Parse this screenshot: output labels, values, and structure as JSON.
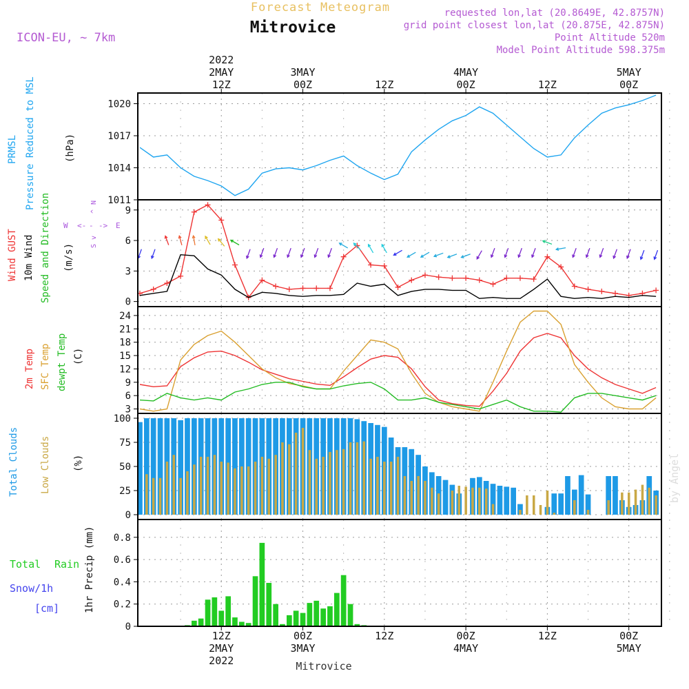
{
  "header": {
    "super_title": "Forecast Meteogram",
    "location": "Mitrovice",
    "model": "ICON-EU, ~ 7km",
    "requested": "requested lon,lat (20.8649E, 42.8757N)",
    "gridpoint": "grid point closest lon,lat (20.875E, 42.875N)",
    "point_alt": "Point Altitude 520m",
    "model_alt": "Model Point Altitude 598.375m",
    "footer": "Mitrovice",
    "credit": "by Angel"
  },
  "colors": {
    "pressure": "#1ea5f0",
    "wind": "#000000",
    "gust": "#ee3333",
    "dir_label": "#22bb22",
    "compass": "#aa55dd",
    "temp2m": "#ee3333",
    "sfc": "#d9a030",
    "dewpt": "#22bb22",
    "total_clouds": "#1e9ae6",
    "low_clouds": "#c9a845",
    "rain": "#22cc22",
    "snow": "#4444ee",
    "header_purple": "#b45ad2",
    "header_orange": "#e8c060"
  },
  "time_axis": {
    "top": [
      {
        "t": 12,
        "lines": [
          "2022",
          "2MAY",
          "12Z"
        ]
      },
      {
        "t": 24,
        "lines": [
          "3MAY",
          "00Z"
        ]
      },
      {
        "t": 36,
        "lines": [
          "12Z"
        ]
      },
      {
        "t": 48,
        "lines": [
          "4MAY",
          "00Z"
        ]
      },
      {
        "t": 60,
        "lines": [
          "12Z"
        ]
      },
      {
        "t": 72,
        "lines": [
          "5MAY",
          "00Z"
        ]
      }
    ],
    "bottom": [
      {
        "t": 12,
        "lines": [
          "12Z",
          "2MAY",
          "2022"
        ]
      },
      {
        "t": 24,
        "lines": [
          "00Z",
          "3MAY"
        ]
      },
      {
        "t": 36,
        "lines": [
          "12Z"
        ]
      },
      {
        "t": 48,
        "lines": [
          "00Z",
          "4MAY"
        ]
      },
      {
        "t": 60,
        "lines": [
          "12Z"
        ]
      },
      {
        "t": 72,
        "lines": [
          "00Z",
          "5MAY"
        ]
      }
    ]
  },
  "panels": {
    "pressure": {
      "labels": [
        "PRMSL",
        "Pressure Reduced to MSL"
      ],
      "unit": "(hPa)"
    },
    "wind": {
      "labels": [
        "Wind GUST",
        "10m Wind",
        "Speed and Direction"
      ],
      "unit": "(m/s)",
      "compass": [
        "W",
        "<-",
        "-",
        "->",
        "E"
      ],
      "compass_v": [
        "N",
        "^",
        "-",
        "v",
        "S"
      ]
    },
    "temp": {
      "labels": [
        "2m Temp",
        "SFC Temp",
        "dewpt Temp"
      ],
      "unit": "(C)"
    },
    "clouds": {
      "labels": [
        "Total Clouds",
        "Low Clouds"
      ],
      "unit": "(%)"
    },
    "precip": {
      "labels": [
        "Total",
        "Rain",
        "Snow/1h",
        "[cm]"
      ],
      "unit": "1hr Precip (mm)"
    }
  },
  "chart_data": [
    {
      "type": "line",
      "panel": "pressure",
      "title": "PRMSL Pressure Reduced to MSL",
      "ylabel": "(hPa)",
      "ylim": [
        1011,
        1021
      ],
      "yticks": [
        1011,
        1014,
        1017,
        1020
      ],
      "x_unit": "hours from 2 MAY 00Z",
      "x": [
        0,
        2,
        4,
        6,
        8,
        10,
        12,
        14,
        16,
        18,
        20,
        22,
        24,
        26,
        28,
        30,
        32,
        34,
        36,
        38,
        40,
        42,
        44,
        46,
        48,
        50,
        52,
        54,
        56,
        58,
        60,
        62,
        64,
        66,
        68,
        70,
        72,
        74,
        76
      ],
      "series": [
        {
          "name": "PRMSL",
          "values": [
            1015.9,
            1015.0,
            1015.2,
            1014.0,
            1013.2,
            1012.8,
            1012.3,
            1011.4,
            1012.0,
            1013.5,
            1013.9,
            1014.0,
            1013.8,
            1014.2,
            1014.7,
            1015.1,
            1014.2,
            1013.5,
            1012.9,
            1013.4,
            1015.5,
            1016.6,
            1017.6,
            1018.4,
            1018.9,
            1019.7,
            1019.1,
            1018.0,
            1016.9,
            1015.8,
            1015.0,
            1015.2,
            1016.8,
            1018.0,
            1019.1,
            1019.6,
            1019.9,
            1020.3,
            1020.8
          ]
        }
      ]
    },
    {
      "type": "line",
      "panel": "wind",
      "title": "Wind GUST / 10m Wind Speed and Direction",
      "ylabel": "(m/s)",
      "ylim": [
        -0.5,
        10
      ],
      "yticks": [
        0,
        3,
        6,
        9
      ],
      "x_unit": "hours from 2 MAY 00Z",
      "x": [
        0,
        2,
        4,
        6,
        8,
        10,
        12,
        14,
        16,
        18,
        20,
        22,
        24,
        26,
        28,
        30,
        32,
        34,
        36,
        38,
        40,
        42,
        44,
        46,
        48,
        50,
        52,
        54,
        56,
        58,
        60,
        62,
        64,
        66,
        68,
        70,
        72,
        74,
        76
      ],
      "series": [
        {
          "name": "Wind GUST",
          "values": [
            0.8,
            1.2,
            1.8,
            2.5,
            8.8,
            9.5,
            8.0,
            3.6,
            0.4,
            2.1,
            1.5,
            1.2,
            1.3,
            1.3,
            1.3,
            4.4,
            5.5,
            3.6,
            3.5,
            1.4,
            2.1,
            2.6,
            2.4,
            2.3,
            2.3,
            2.1,
            1.7,
            2.3,
            2.3,
            2.2,
            4.4,
            3.4,
            1.5,
            1.2,
            1.0,
            0.8,
            0.6,
            0.8,
            1.1
          ]
        },
        {
          "name": "10m Wind",
          "values": [
            0.6,
            0.8,
            1.0,
            4.6,
            4.5,
            3.2,
            2.6,
            1.2,
            0.4,
            0.9,
            0.8,
            0.6,
            0.5,
            0.6,
            0.6,
            0.7,
            1.8,
            1.5,
            1.7,
            0.6,
            1.0,
            1.2,
            1.2,
            1.1,
            1.1,
            0.3,
            0.4,
            0.3,
            0.3,
            1.2,
            2.2,
            0.5,
            0.3,
            0.4,
            0.3,
            0.5,
            0.4,
            0.6,
            0.5
          ]
        }
      ],
      "direction_arrows": {
        "x": [
          0,
          2,
          4,
          6,
          8,
          10,
          12,
          14,
          16,
          18,
          20,
          22,
          24,
          26,
          28,
          30,
          32,
          34,
          36,
          38,
          40,
          42,
          44,
          46,
          48,
          50,
          52,
          54,
          56,
          58,
          60,
          62,
          64,
          66,
          68,
          70,
          72,
          74,
          76
        ],
        "y_at": [
          4.7,
          4.7,
          6.0,
          6.0,
          6.0,
          6.0,
          5.8,
          5.8,
          4.7,
          4.8,
          4.8,
          4.8,
          4.8,
          4.8,
          4.8,
          5.5,
          5.4,
          5.2,
          5.2,
          4.8,
          4.6,
          4.6,
          4.6,
          4.5,
          4.5,
          4.6,
          4.8,
          4.8,
          4.8,
          4.8,
          5.8,
          5.2,
          4.8,
          4.8,
          4.8,
          4.7,
          4.7,
          4.6,
          4.6
        ],
        "angle_deg": [
          200,
          200,
          340,
          345,
          350,
          330,
          320,
          300,
          200,
          200,
          200,
          200,
          200,
          200,
          200,
          300,
          315,
          330,
          330,
          240,
          240,
          240,
          250,
          250,
          250,
          210,
          200,
          200,
          200,
          200,
          290,
          260,
          200,
          200,
          200,
          200,
          200,
          200,
          200
        ],
        "colors": [
          "#3333ee",
          "#3333ee",
          "#ee3333",
          "#ee5533",
          "#ee7733",
          "#ddbb22",
          "#ddbb22",
          "#22bb22",
          "#7722cc",
          "#7722cc",
          "#7722cc",
          "#7722cc",
          "#7722cc",
          "#7722cc",
          "#7722cc",
          "#22aadd",
          "#22ccdd",
          "#22ccdd",
          "#22ccdd",
          "#3333ee",
          "#22aadd",
          "#22aadd",
          "#22aadd",
          "#22aadd",
          "#22aadd",
          "#7722cc",
          "#7722cc",
          "#7722cc",
          "#7722cc",
          "#7722cc",
          "#22cc88",
          "#22aadd",
          "#7722cc",
          "#7722cc",
          "#7722cc",
          "#7722cc",
          "#7722cc",
          "#3333ee",
          "#3333ee"
        ]
      }
    },
    {
      "type": "line",
      "panel": "temp",
      "title": "2m Temp / SFC Temp / dewpt Temp",
      "ylabel": "(C)",
      "ylim": [
        2,
        26
      ],
      "yticks": [
        3,
        6,
        9,
        12,
        15,
        18,
        21,
        24
      ],
      "x_unit": "hours from 2 MAY 00Z",
      "x": [
        0,
        2,
        4,
        6,
        8,
        10,
        12,
        14,
        16,
        18,
        20,
        22,
        24,
        26,
        28,
        30,
        32,
        34,
        36,
        38,
        40,
        42,
        44,
        46,
        48,
        50,
        52,
        54,
        56,
        58,
        60,
        62,
        64,
        66,
        68,
        70,
        72,
        74,
        76
      ],
      "series": [
        {
          "name": "2m Temp",
          "values": [
            8.5,
            8.0,
            8.2,
            12.5,
            14.5,
            15.8,
            16.0,
            15.0,
            13.5,
            11.8,
            10.8,
            9.8,
            9.2,
            8.6,
            8.3,
            10.2,
            12.3,
            14.2,
            15.0,
            14.6,
            12.0,
            8.0,
            5.0,
            4.2,
            3.8,
            3.6,
            7.0,
            11.0,
            16.0,
            19.0,
            20.0,
            19.0,
            15.0,
            12.0,
            10.0,
            8.5,
            7.5,
            6.5,
            7.8
          ]
        },
        {
          "name": "SFC Temp",
          "values": [
            3.0,
            2.5,
            3.0,
            14.0,
            17.5,
            19.5,
            20.5,
            18.0,
            15.0,
            12.0,
            10.0,
            8.7,
            8.2,
            7.5,
            7.5,
            11.5,
            15.0,
            18.5,
            18.0,
            16.5,
            11.0,
            6.5,
            4.5,
            3.5,
            3.0,
            2.5,
            9.0,
            16.0,
            22.5,
            25.0,
            25.0,
            22.0,
            13.0,
            9.0,
            5.5,
            3.5,
            3.0,
            3.0,
            5.5
          ]
        },
        {
          "name": "dewpt Temp",
          "values": [
            5.0,
            4.8,
            6.5,
            5.5,
            5.0,
            5.5,
            5.0,
            6.8,
            7.5,
            8.5,
            9.0,
            9.0,
            8.0,
            7.5,
            7.5,
            8.2,
            8.7,
            9.0,
            7.5,
            5.0,
            5.0,
            5.5,
            4.5,
            4.0,
            3.5,
            3.0,
            4.0,
            5.0,
            3.5,
            2.5,
            2.5,
            2.3,
            5.5,
            6.5,
            6.5,
            6.0,
            5.5,
            5.0,
            6.0
          ]
        }
      ]
    },
    {
      "type": "bar",
      "panel": "clouds",
      "title": "Total Clouds / Low Clouds",
      "ylabel": "(%)",
      "ylim": [
        -5,
        105
      ],
      "yticks": [
        0,
        25,
        50,
        75,
        100
      ],
      "x_unit": "hours from 2 MAY 00Z",
      "x": [
        0,
        1,
        2,
        3,
        4,
        5,
        6,
        7,
        8,
        9,
        10,
        11,
        12,
        13,
        14,
        15,
        16,
        17,
        18,
        19,
        20,
        21,
        22,
        23,
        24,
        25,
        26,
        27,
        28,
        29,
        30,
        31,
        32,
        33,
        34,
        35,
        36,
        37,
        38,
        39,
        40,
        41,
        42,
        43,
        44,
        45,
        46,
        47,
        48,
        49,
        50,
        51,
        52,
        53,
        54,
        55,
        56,
        57,
        58,
        59,
        60,
        61,
        62,
        63,
        64,
        65,
        66,
        67,
        68,
        69,
        70,
        71,
        72,
        73,
        74,
        75,
        76
      ],
      "series": [
        {
          "name": "Total Clouds",
          "values": [
            96,
            100,
            100,
            100,
            100,
            100,
            98,
            100,
            100,
            100,
            100,
            100,
            100,
            100,
            100,
            100,
            100,
            100,
            100,
            100,
            100,
            100,
            100,
            100,
            100,
            100,
            100,
            100,
            100,
            100,
            100,
            100,
            99,
            97,
            95,
            93,
            91,
            80,
            70,
            70,
            68,
            62,
            50,
            44,
            40,
            36,
            31,
            22,
            0,
            38,
            39,
            35,
            32,
            30,
            29,
            28,
            11,
            0,
            0,
            0,
            8,
            22,
            22,
            40,
            26,
            41,
            21,
            0,
            0,
            40,
            40,
            15,
            8,
            10,
            15,
            40,
            25
          ]
        },
        {
          "name": "Low Clouds",
          "values": [
            0,
            42,
            38,
            38,
            55,
            62,
            38,
            45,
            52,
            60,
            60,
            62,
            55,
            54,
            48,
            50,
            50,
            55,
            60,
            58,
            62,
            75,
            73,
            85,
            90,
            67,
            58,
            60,
            65,
            67,
            68,
            75,
            75,
            76,
            58,
            60,
            55,
            55,
            60,
            40,
            35,
            40,
            35,
            28,
            22,
            0,
            25,
            30,
            29,
            28,
            28,
            27,
            11,
            0,
            0,
            0,
            5,
            20,
            20,
            10,
            25,
            2,
            0,
            0,
            15,
            0,
            5,
            0,
            0,
            15,
            0,
            23,
            23,
            26,
            31,
            28,
            20
          ]
        }
      ]
    },
    {
      "type": "bar",
      "panel": "precip",
      "title": "Total Rain Snow/1h [cm]",
      "ylabel": "1hr Precip (mm)",
      "ylim": [
        0,
        0.96
      ],
      "yticks": [
        0,
        0.2,
        0.4,
        0.6,
        0.8
      ],
      "x_unit": "hours from 2 MAY 00Z",
      "x": [
        7,
        8,
        9,
        10,
        11,
        12,
        13,
        14,
        15,
        16,
        17,
        18,
        19,
        20,
        21,
        22,
        23,
        24,
        25,
        26,
        27,
        28,
        29,
        30,
        31,
        32,
        33,
        34,
        35
      ],
      "series": [
        {
          "name": "Total Rain",
          "values": [
            0.01,
            0.05,
            0.07,
            0.24,
            0.26,
            0.14,
            0.27,
            0.08,
            0.04,
            0.03,
            0.45,
            0.75,
            0.39,
            0.2,
            0.02,
            0.1,
            0.14,
            0.12,
            0.21,
            0.23,
            0.16,
            0.18,
            0.3,
            0.46,
            0.2,
            0.02,
            0.01,
            0.0,
            0.0
          ]
        }
      ]
    }
  ]
}
